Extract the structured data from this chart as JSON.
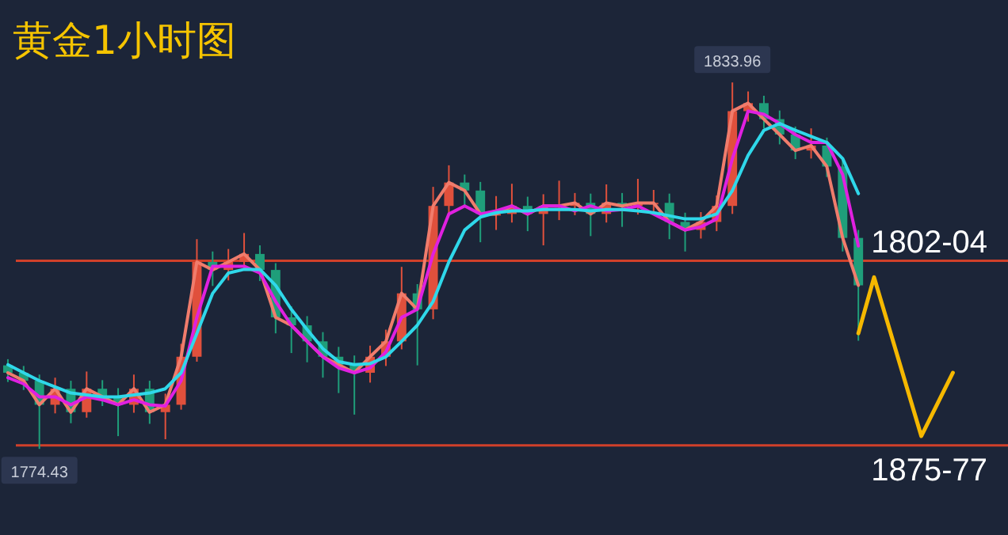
{
  "chart_data": {
    "type": "candlestick",
    "title": "黄金1小时图",
    "categories": [
      null,
      null,
      null,
      null,
      null,
      null,
      null,
      null,
      null,
      null,
      null,
      null,
      null,
      null,
      null,
      null,
      null,
      null,
      null,
      null,
      null,
      null,
      null,
      null,
      null,
      null,
      null,
      null,
      null,
      null,
      null,
      null,
      null,
      null,
      null,
      null,
      null,
      null,
      null,
      null,
      null,
      null,
      null,
      null,
      null,
      null,
      null,
      null,
      null,
      null,
      null,
      null,
      null,
      null,
      null,
      null,
      null,
      null,
      null,
      null,
      null,
      null
    ],
    "ohlc": [
      [
        1788.0,
        1789.0,
        1785.3,
        1786.8
      ],
      [
        1786.8,
        1787.9,
        1784.0,
        1785.5
      ],
      [
        1785.5,
        1786.5,
        1774.43,
        1781.6
      ],
      [
        1781.6,
        1786.0,
        1780.2,
        1784.2
      ],
      [
        1784.2,
        1785.5,
        1778.6,
        1780.4
      ],
      [
        1780.4,
        1787.0,
        1779.5,
        1784.2
      ],
      [
        1784.2,
        1785.6,
        1781.4,
        1782.9
      ],
      [
        1782.9,
        1784.3,
        1776.5,
        1781.6
      ],
      [
        1781.6,
        1786.5,
        1780.3,
        1784.2
      ],
      [
        1784.2,
        1785.5,
        1778.5,
        1780.4
      ],
      [
        1780.4,
        1783.4,
        1776.0,
        1781.6
      ],
      [
        1781.6,
        1791.5,
        1780.8,
        1789.4
      ],
      [
        1789.4,
        1808.5,
        1788.6,
        1804.8
      ],
      [
        1804.8,
        1806.5,
        1800.9,
        1803.5
      ],
      [
        1803.5,
        1806.9,
        1801.8,
        1804.8
      ],
      [
        1804.8,
        1809.5,
        1803.6,
        1806.1
      ],
      [
        1806.1,
        1807.5,
        1801.7,
        1803.5
      ],
      [
        1803.5,
        1804.6,
        1793.2,
        1795.8
      ],
      [
        1795.8,
        1797.6,
        1790.0,
        1794.5
      ],
      [
        1794.5,
        1796.0,
        1788.5,
        1791.9
      ],
      [
        1791.9,
        1793.4,
        1786.0,
        1789.4
      ],
      [
        1789.4,
        1791.0,
        1783.5,
        1788.1
      ],
      [
        1788.1,
        1789.6,
        1780.0,
        1786.8
      ],
      [
        1786.8,
        1791.2,
        1785.2,
        1789.4
      ],
      [
        1789.4,
        1793.8,
        1787.9,
        1791.9
      ],
      [
        1791.9,
        1804.0,
        1790.6,
        1799.7
      ],
      [
        1799.7,
        1801.2,
        1788.0,
        1797.1
      ],
      [
        1797.1,
        1817.0,
        1795.5,
        1813.9
      ],
      [
        1813.9,
        1820.5,
        1812.5,
        1817.7
      ],
      [
        1817.7,
        1819.0,
        1814.0,
        1816.4
      ],
      [
        1816.4,
        1817.8,
        1808.0,
        1812.6
      ],
      [
        1812.6,
        1815.5,
        1810.0,
        1812.6
      ],
      [
        1812.6,
        1817.5,
        1811.2,
        1813.9
      ],
      [
        1813.9,
        1815.4,
        1809.8,
        1812.6
      ],
      [
        1812.6,
        1815.8,
        1807.5,
        1813.9
      ],
      [
        1813.9,
        1818.0,
        1811.6,
        1813.9
      ],
      [
        1813.9,
        1816.0,
        1812.4,
        1814.4
      ],
      [
        1814.4,
        1815.9,
        1809.0,
        1812.6
      ],
      [
        1812.6,
        1817.4,
        1811.2,
        1814.4
      ],
      [
        1814.4,
        1816.0,
        1810.5,
        1813.9
      ],
      [
        1813.9,
        1818.3,
        1812.5,
        1814.4
      ],
      [
        1814.4,
        1816.5,
        1812.8,
        1814.4
      ],
      [
        1814.4,
        1815.9,
        1808.5,
        1811.3
      ],
      [
        1811.3,
        1812.8,
        1806.5,
        1810.0
      ],
      [
        1810.0,
        1812.9,
        1808.6,
        1811.3
      ],
      [
        1811.3,
        1815.6,
        1809.8,
        1813.9
      ],
      [
        1813.9,
        1833.96,
        1812.6,
        1829.3
      ],
      [
        1829.3,
        1832.5,
        1827.6,
        1830.6
      ],
      [
        1830.6,
        1831.8,
        1826.5,
        1828.0
      ],
      [
        1828.0,
        1829.4,
        1823.9,
        1825.5
      ],
      [
        1825.5,
        1826.8,
        1821.5,
        1822.9
      ],
      [
        1822.9,
        1826.5,
        1821.6,
        1823.7
      ],
      [
        1823.7,
        1825.0,
        1818.6,
        1820.3
      ],
      [
        1820.3,
        1821.7,
        1806.5,
        1808.7
      ],
      [
        1808.7,
        1810.0,
        1792.0,
        1801.0
      ],
      null,
      null,
      null,
      null,
      null,
      null,
      null
    ],
    "colors": [
      "#1f9e7a",
      "#1f9e7a",
      "#1f9e7a",
      "#e0503c",
      "#1f9e7a",
      "#e0503c",
      "#1f9e7a",
      "#1f9e7a",
      "#e0503c",
      "#1f9e7a",
      "#e0503c",
      "#e0503c",
      "#e0503c",
      "#1f9e7a",
      "#e0503c",
      "#e0503c",
      "#1f9e7a",
      "#1f9e7a",
      "#1f9e7a",
      "#1f9e7a",
      "#1f9e7a",
      "#1f9e7a",
      "#1f9e7a",
      "#e0503c",
      "#e0503c",
      "#e0503c",
      "#1f9e7a",
      "#e0503c",
      "#e0503c",
      "#1f9e7a",
      "#1f9e7a",
      "#e0503c",
      "#e0503c",
      "#1f9e7a",
      "#e0503c",
      "#e0503c",
      "#e0503c",
      "#1f9e7a",
      "#e0503c",
      "#1f9e7a",
      "#e0503c",
      "#e0503c",
      "#1f9e7a",
      "#1f9e7a",
      "#e0503c",
      "#e0503c",
      "#e0503c",
      "#e0503c",
      "#1f9e7a",
      "#1f9e7a",
      "#1f9e7a",
      "#e0503c",
      "#1f9e7a",
      "#1f9e7a",
      "#1f9e7a",
      null,
      null,
      null,
      null,
      null,
      null,
      null
    ],
    "series": [
      {
        "type": "line",
        "color": "#f07c6c",
        "values": [
          1786.8,
          1785.5,
          1781.6,
          1784.2,
          1780.4,
          1784.2,
          1782.9,
          1781.6,
          1784.2,
          1780.4,
          1781.6,
          1789.4,
          1804.8,
          1803.5,
          1804.8,
          1806.1,
          1803.5,
          1795.8,
          1794.5,
          1791.9,
          1789.4,
          1788.1,
          1786.8,
          1789.4,
          1791.9,
          1799.7,
          1797.1,
          1813.9,
          1817.7,
          1816.4,
          1812.6,
          1812.6,
          1813.9,
          1812.6,
          1813.9,
          1813.9,
          1814.4,
          1812.6,
          1814.4,
          1813.9,
          1814.4,
          1814.4,
          1811.3,
          1810.0,
          1811.3,
          1813.9,
          1829.3,
          1830.6,
          1828.0,
          1825.5,
          1822.9,
          1823.7,
          1820.3,
          1808.7,
          1801.0,
          null,
          null,
          null,
          null,
          null,
          null,
          null
        ]
      },
      {
        "type": "line",
        "color": "#e020e0",
        "values": [
          1786.0,
          1785.0,
          1782.9,
          1782.9,
          1781.6,
          1782.9,
          1782.4,
          1781.6,
          1782.4,
          1781.6,
          1781.4,
          1785.5,
          1795.8,
          1804.1,
          1804.1,
          1804.1,
          1803.0,
          1798.4,
          1794.5,
          1791.9,
          1789.4,
          1787.6,
          1786.8,
          1787.6,
          1790.2,
          1795.8,
          1797.1,
          1806.1,
          1812.6,
          1813.9,
          1812.6,
          1813.1,
          1813.9,
          1812.6,
          1813.9,
          1813.9,
          1813.1,
          1813.9,
          1813.1,
          1813.3,
          1813.9,
          1812.6,
          1811.3,
          1810.0,
          1810.5,
          1811.8,
          1821.6,
          1829.3,
          1828.8,
          1827.3,
          1825.5,
          1824.2,
          1824.2,
          1819.0,
          1807.4,
          null,
          null,
          null,
          null,
          null,
          null,
          null
        ]
      },
      {
        "type": "line",
        "color": "#2fd8ea",
        "values": [
          1788.1,
          1786.8,
          1785.5,
          1784.5,
          1783.5,
          1783.2,
          1782.9,
          1782.9,
          1783.2,
          1783.5,
          1784.2,
          1786.8,
          1793.2,
          1799.7,
          1803.0,
          1803.6,
          1803.6,
          1801.0,
          1797.1,
          1793.8,
          1790.7,
          1788.6,
          1788.1,
          1788.3,
          1789.4,
          1791.9,
          1794.5,
          1798.4,
          1804.8,
          1810.0,
          1812.1,
          1812.8,
          1813.1,
          1813.1,
          1813.3,
          1813.3,
          1813.3,
          1813.1,
          1813.3,
          1813.3,
          1813.1,
          1812.8,
          1812.3,
          1811.8,
          1811.8,
          1812.6,
          1816.4,
          1822.1,
          1826.2,
          1827.3,
          1826.2,
          1825.2,
          1824.2,
          1821.6,
          1815.9,
          null,
          null,
          null,
          null,
          null,
          null,
          null
        ]
      },
      {
        "type": "line",
        "color": "#f5b800",
        "values": [
          null,
          null,
          null,
          null,
          null,
          null,
          null,
          null,
          null,
          null,
          null,
          null,
          null,
          null,
          null,
          null,
          null,
          null,
          null,
          null,
          null,
          null,
          null,
          null,
          null,
          null,
          null,
          null,
          null,
          null,
          null,
          null,
          null,
          null,
          null,
          null,
          null,
          null,
          null,
          null,
          null,
          null,
          null,
          null,
          null,
          null,
          null,
          null,
          null,
          null,
          null,
          null,
          null,
          null,
          1793.2,
          1802.3,
          null,
          null,
          1776.5,
          null,
          1786.8,
          null
        ]
      }
    ],
    "ref_lines": [
      {
        "axis": "y",
        "value": 1805,
        "color": "#d0402a"
      },
      {
        "axis": "y",
        "value": 1775,
        "color": "#d0402a"
      }
    ],
    "annotations": [
      {
        "text": "1833.96",
        "y": 1833.96
      },
      {
        "text": "1774.43",
        "y": 1774.43
      },
      "1802-04",
      "1875-77"
    ]
  }
}
